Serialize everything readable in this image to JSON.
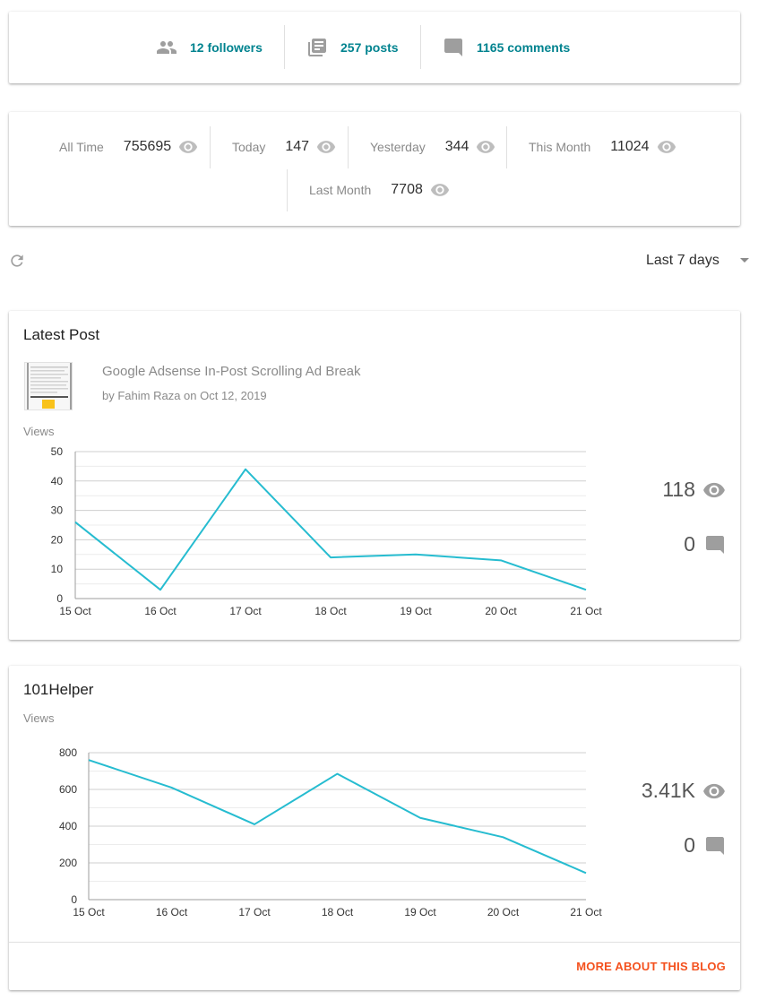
{
  "stats": {
    "followers": "12 followers",
    "posts": "257 posts",
    "comments": "1165 comments"
  },
  "pageviews": [
    {
      "label": "All Time",
      "value": "755695"
    },
    {
      "label": "Today",
      "value": "147"
    },
    {
      "label": "Yesterday",
      "value": "344"
    },
    {
      "label": "This Month",
      "value": "11024"
    },
    {
      "label": "Last Month",
      "value": "7708"
    }
  ],
  "range": {
    "selected": "Last 7 days"
  },
  "latest_post": {
    "heading": "Latest Post",
    "title": "Google Adsense In-Post Scrolling Ad Break",
    "meta": "by Fahim Raza on Oct 12, 2019",
    "views_label": "Views",
    "views_total": "118",
    "comments_total": "0"
  },
  "blog": {
    "heading": "101Helper",
    "views_label": "Views",
    "views_total": "3.41K",
    "comments_total": "0",
    "more_link": "MORE ABOUT THIS BLOG"
  },
  "colors": {
    "accent": "#00838f",
    "line": "#26bcd0",
    "link": "#f4511e"
  },
  "icons": [
    "people-icon",
    "posts-icon",
    "comment-icon",
    "eye-icon",
    "refresh-icon",
    "dropdown-caret-icon"
  ],
  "chart_data": [
    {
      "type": "line",
      "ylabel": "Views",
      "categories": [
        "15 Oct",
        "16 Oct",
        "17 Oct",
        "18 Oct",
        "19 Oct",
        "20 Oct",
        "21 Oct"
      ],
      "series": [
        {
          "values": [
            26,
            3,
            44,
            14,
            15,
            13,
            3
          ]
        }
      ],
      "ylim": [
        0,
        50
      ],
      "yticks": [
        0,
        10,
        20,
        30,
        40,
        50
      ],
      "grid": true
    },
    {
      "type": "line",
      "ylabel": "Views",
      "categories": [
        "15 Oct",
        "16 Oct",
        "17 Oct",
        "18 Oct",
        "19 Oct",
        "20 Oct",
        "21 Oct"
      ],
      "series": [
        {
          "values": [
            760,
            610,
            410,
            685,
            445,
            340,
            145
          ]
        }
      ],
      "ylim": [
        0,
        800
      ],
      "yticks": [
        0,
        200,
        400,
        600,
        800
      ],
      "grid": true
    }
  ]
}
